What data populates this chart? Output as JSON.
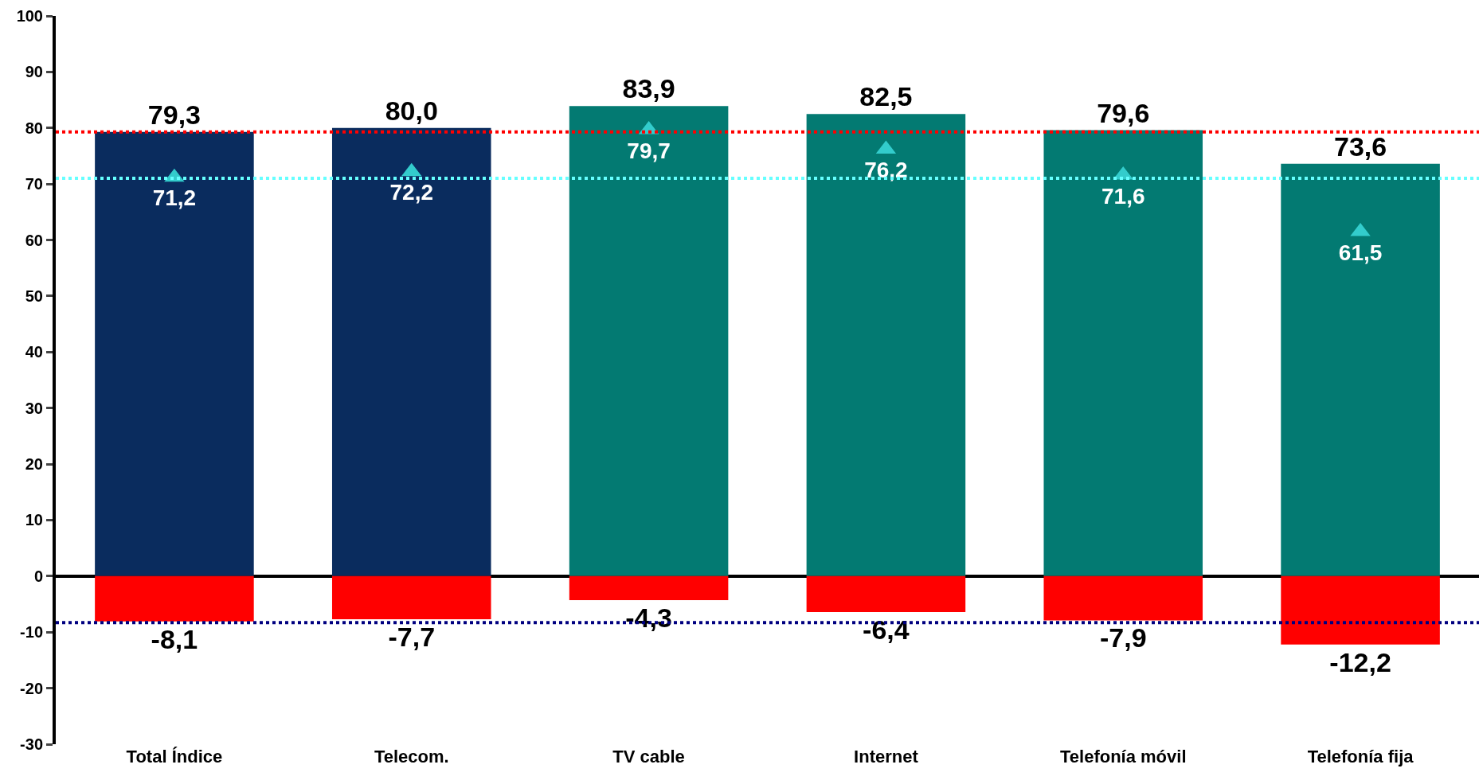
{
  "chart_data": {
    "type": "bar",
    "stacked": true,
    "categories": [
      "Total Índice",
      "Telecom.",
      "TV cable",
      "Internet",
      "Telefonía móvil",
      "Telefonía fija"
    ],
    "series": [
      {
        "colors": [
          "#0a2c5e",
          "#0a2c5e",
          "#037a72",
          "#037a72",
          "#037a72",
          "#037a72"
        ],
        "values": [
          79.3,
          80.0,
          83.9,
          82.5,
          79.6,
          73.6
        ],
        "value_labels": [
          "79,3",
          "80,0",
          "83,9",
          "82,5",
          "79,6",
          "73,6"
        ]
      },
      {
        "color": "#ff0000",
        "values": [
          -8.1,
          -7.7,
          -4.3,
          -6.4,
          -7.9,
          -12.2
        ],
        "value_labels": [
          "-8,1",
          "-7,7",
          "-4,3",
          "-6,4",
          "-7,9",
          "-12,2"
        ]
      },
      {
        "type": "scatter",
        "color": "#33cccc",
        "marker": "triangle",
        "values": [
          71.2,
          72.2,
          79.7,
          76.2,
          71.6,
          61.5
        ],
        "value_labels": [
          "71,2",
          "72,2",
          "79,7",
          "76,2",
          "71,6",
          "61,5"
        ]
      }
    ],
    "ylim": [
      -30,
      100
    ],
    "yticks": [
      -30,
      -20,
      -10,
      0,
      10,
      20,
      30,
      40,
      50,
      60,
      70,
      80,
      90,
      100
    ],
    "legend": false,
    "ref_lines": [
      {
        "axis": "y",
        "value": 79.3,
        "color": "#ff0000",
        "line_style": "dotted"
      },
      {
        "axis": "y",
        "value": 71.0,
        "color": "#66ffff",
        "line_style": "dotted"
      },
      {
        "axis": "y",
        "value": -8.3,
        "color": "#000080",
        "line_style": "dotted"
      }
    ]
  }
}
